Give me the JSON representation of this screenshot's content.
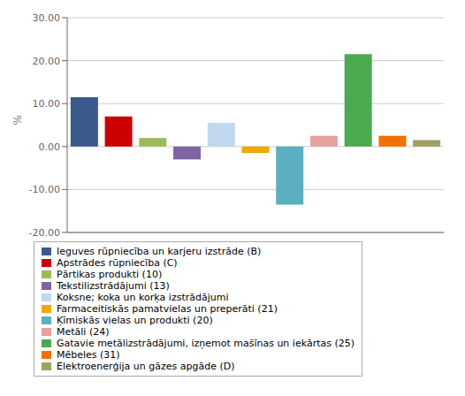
{
  "chart_data": {
    "type": "bar",
    "ylabel": "%",
    "categories": [
      "Ieguves rūpniecība un karjeru izstrāde (B)",
      "Apstrādes rūpniecība  (C)",
      "Pārtikas produkti  (10)",
      "Tekstilizstrādājumi (13)",
      "Koksne; koka un korķa izstrādājumi",
      "Farmaceitiskās pamatvielas un  preperāti (21)",
      "Ķīmiskās vielas un produkti (20)",
      "Metāli (24)",
      "Gatavie metālizstrādājumi, izņemot mašīnas un iekārtas (25)",
      "Mēbeles (31)",
      "Elektroenerģija un gāzes apgāde (D)"
    ],
    "values": [
      11.5,
      7.0,
      2.0,
      -3.0,
      5.5,
      -1.5,
      -13.5,
      2.5,
      21.5,
      2.5,
      1.5
    ],
    "colors": [
      "#3a5a8c",
      "#cc0000",
      "#9bbb59",
      "#8064a2",
      "#c0d8f0",
      "#f0a800",
      "#5bafc0",
      "#e8a0a0",
      "#4aaa50",
      "#f07000",
      "#a0a060"
    ],
    "ylim": [
      -20,
      30
    ],
    "yticks": [
      {
        "value": -20,
        "label": "-20.00"
      },
      {
        "value": -10,
        "label": "-10.00"
      },
      {
        "value": 0,
        "label": "0.00"
      },
      {
        "value": 10,
        "label": "10.00"
      },
      {
        "value": 20,
        "label": "20.00"
      },
      {
        "value": 30,
        "label": "30.00"
      }
    ],
    "grid": true,
    "legend": "lower left",
    "tick_labels": "y"
  }
}
